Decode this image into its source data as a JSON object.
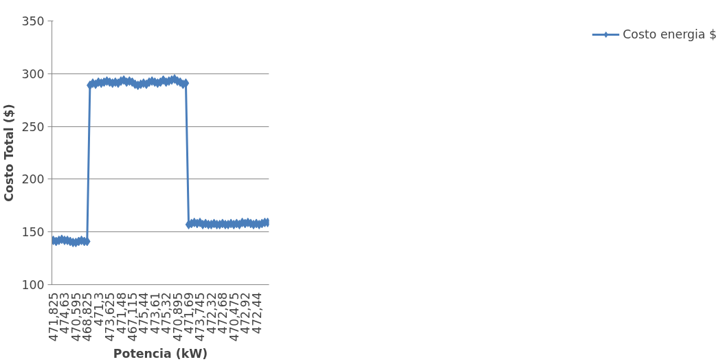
{
  "chart_data": {
    "type": "line",
    "xlabel": "Potencia (kW)",
    "ylabel": "Costo Total ($)",
    "categories": [
      "471,825",
      null,
      null,
      null,
      "474,63",
      null,
      null,
      null,
      "470,595",
      null,
      null,
      null,
      "468,825",
      null,
      null,
      null,
      "471,3",
      null,
      null,
      null,
      "473,625",
      null,
      null,
      null,
      "471,48",
      null,
      null,
      null,
      "467,115",
      null,
      null,
      null,
      "475,44",
      null,
      null,
      null,
      "473,61",
      null,
      null,
      null,
      "475,32",
      null,
      null,
      null,
      "470,895",
      null,
      null,
      null,
      "471,69",
      null,
      null,
      null,
      "473,745",
      null,
      null,
      null,
      "472,32",
      null,
      null,
      null,
      "472,68",
      null,
      null,
      null,
      "470,475",
      null,
      null,
      null,
      "472,92",
      null,
      null,
      null,
      "472,44",
      null,
      null,
      null,
      null
    ],
    "series": [
      {
        "name": "Costo energia $",
        "color": "#4a7ebb",
        "values": [
          142,
          141,
          142,
          143,
          142,
          142,
          141,
          140,
          140,
          141,
          142,
          141,
          141,
          289,
          291,
          290,
          292,
          291,
          292,
          293,
          292,
          291,
          292,
          291,
          293,
          294,
          292,
          293,
          292,
          290,
          289,
          290,
          291,
          290,
          292,
          293,
          292,
          291,
          292,
          294,
          292,
          293,
          294,
          295,
          293,
          292,
          290,
          291,
          157,
          158,
          159,
          158,
          159,
          157,
          158,
          157,
          157,
          158,
          157,
          157,
          158,
          157,
          157,
          158,
          157,
          158,
          157,
          159,
          158,
          159,
          158,
          157,
          158,
          157,
          158,
          159,
          159
        ]
      }
    ],
    "ylim": [
      100,
      350
    ],
    "yticks": [
      100,
      150,
      200,
      250,
      300,
      350
    ],
    "grid": "y",
    "legend": "right",
    "marker": "diamond",
    "line_style": "solid"
  }
}
